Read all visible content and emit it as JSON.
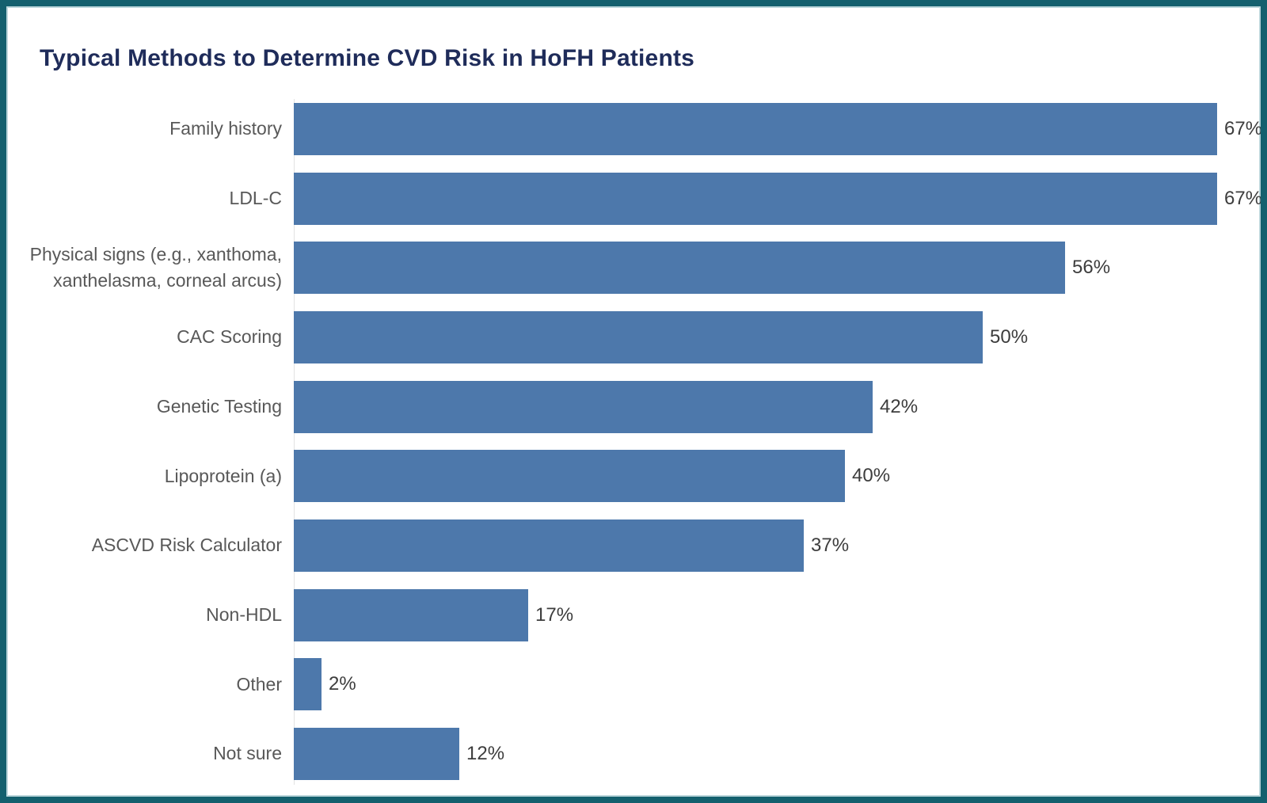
{
  "frame": {
    "border_color": "#14606e",
    "inner_edge_color": "#bcd6db",
    "background": "#ffffff"
  },
  "chart": {
    "title": "Typical Methods to Determine CVD Risk in HoFH Patients",
    "title_color": "#1f2c5a"
  },
  "chart_data": {
    "type": "bar",
    "orientation": "horizontal",
    "title": "Typical Methods to Determine CVD Risk in HoFH Patients",
    "categories": [
      "Family history",
      "LDL-C",
      "Physical signs (e.g., xanthoma,\nxanthelasma, corneal arcus)",
      "CAC Scoring",
      "Genetic Testing",
      "Lipoprotein (a)",
      "ASCVD Risk Calculator",
      "Non-HDL",
      "Other",
      "Not sure"
    ],
    "values": [
      67,
      67,
      56,
      50,
      42,
      40,
      37,
      17,
      2,
      12
    ],
    "value_labels": [
      "67%",
      "67%",
      "56%",
      "50%",
      "42%",
      "40%",
      "37%",
      "17%",
      "2%",
      "12%"
    ],
    "xlabel": "",
    "ylabel": "",
    "xlim": [
      0,
      70
    ],
    "grid": false,
    "legend": "none",
    "value_label_position": "end-of-bar",
    "bar_color": "#4d78ab",
    "category_label_color": "#585858",
    "value_label_color": "#3d3d3d"
  }
}
